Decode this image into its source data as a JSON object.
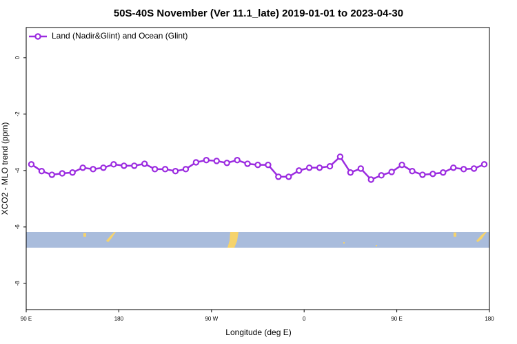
{
  "chart_data": {
    "type": "line",
    "title": "50S-40S November (Ver 11.1_late)   2019-01-01 to 2023-04-30",
    "x_label": "Longitude (deg E)",
    "y_label": "XCO2 - MLO trend (ppm)",
    "x": [
      95,
      105,
      115,
      125,
      135,
      145,
      155,
      165,
      175,
      185,
      195,
      205,
      215,
      225,
      235,
      245,
      255,
      265,
      275,
      285,
      295,
      305,
      315,
      325,
      335,
      345,
      355,
      365,
      375,
      385,
      395,
      405,
      415,
      425,
      435,
      445,
      455,
      465,
      475,
      485,
      495,
      505,
      515,
      525,
      535
    ],
    "series": [
      {
        "name": "Land (Nadir&Glint) and Ocean (Glint)",
        "color": "#9b2be0",
        "values": [
          -3.78,
          -4.02,
          -4.15,
          -4.1,
          -4.07,
          -3.9,
          -3.95,
          -3.9,
          -3.78,
          -3.83,
          -3.83,
          -3.76,
          -3.95,
          -3.95,
          -4.02,
          -3.95,
          -3.71,
          -3.63,
          -3.66,
          -3.73,
          -3.63,
          -3.76,
          -3.8,
          -3.8,
          -4.22,
          -4.22,
          -4.0,
          -3.9,
          -3.9,
          -3.85,
          -3.51,
          -4.07,
          -3.93,
          -4.32,
          -4.17,
          -4.05,
          -3.8,
          -4.02,
          -4.15,
          -4.12,
          -4.07,
          -3.9,
          -3.95,
          -3.93,
          -3.78
        ]
      }
    ],
    "xlim": [
      90,
      540
    ],
    "xticks": [
      {
        "value": 90,
        "label": "90 E"
      },
      {
        "value": 180,
        "label": "180"
      },
      {
        "value": 270,
        "label": "90 W"
      },
      {
        "value": 360,
        "label": "0"
      },
      {
        "value": 450,
        "label": "90 E"
      },
      {
        "value": 540,
        "label": "180"
      }
    ],
    "ylim": [
      -8.93,
      1.07
    ],
    "yticks": [
      0,
      -2,
      -4,
      -6,
      -8
    ],
    "legend": "top-left"
  }
}
